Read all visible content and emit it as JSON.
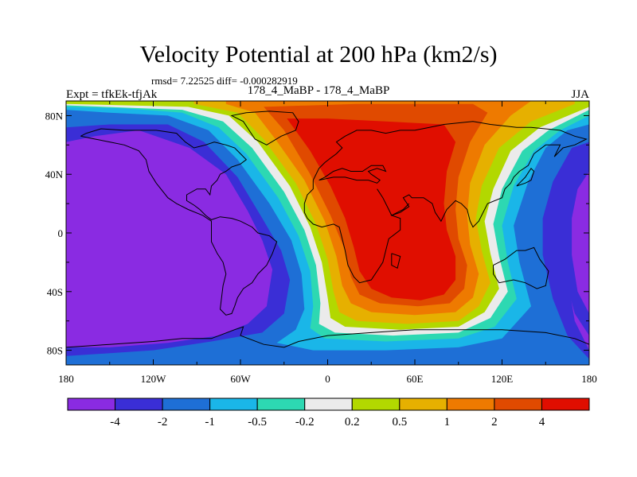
{
  "header": {
    "title": "Velocity Potential at 200 hPa (km2/s)",
    "stats": "rmsd= 7.22525 diff= -0.000282919",
    "left": "Expt = tfkEk-tfjAk",
    "center": "178_4_MaBP - 178_4_MaBP",
    "right": "JJA"
  },
  "chart_data": {
    "type": "heatmap",
    "title": "Velocity Potential at 200 hPa (km2/s)",
    "x_ticks": [
      "180",
      "120W",
      "60W",
      "0",
      "60E",
      "120E",
      "180"
    ],
    "y_ticks": [
      "80N",
      "40N",
      "0",
      "40S",
      "80S"
    ],
    "xlim": [
      -180,
      180
    ],
    "ylim": [
      -90,
      90
    ],
    "levels": [
      "-4",
      "-2",
      "-1",
      "-0.5",
      "-0.2",
      "0.2",
      "0.5",
      "1",
      "2",
      "4"
    ],
    "colors": [
      "#8a2be2",
      "#3a2ed6",
      "#1e6fd6",
      "#1ab6e8",
      "#2dd8b2",
      "#ebebeb",
      "#b2d800",
      "#e6b000",
      "#ee7a00",
      "#e04a00",
      "#e00e00"
    ],
    "regions": [
      {
        "sign": "negative",
        "center_lon": -140,
        "center_lat": 0,
        "peak_band": "< -4"
      },
      {
        "sign": "positive",
        "center_lon": 50,
        "center_lat": 10,
        "peak_band": "> 4"
      },
      {
        "sign": "negative",
        "center_lon": 180,
        "center_lat": 0,
        "peak_band": "< -4"
      }
    ]
  }
}
